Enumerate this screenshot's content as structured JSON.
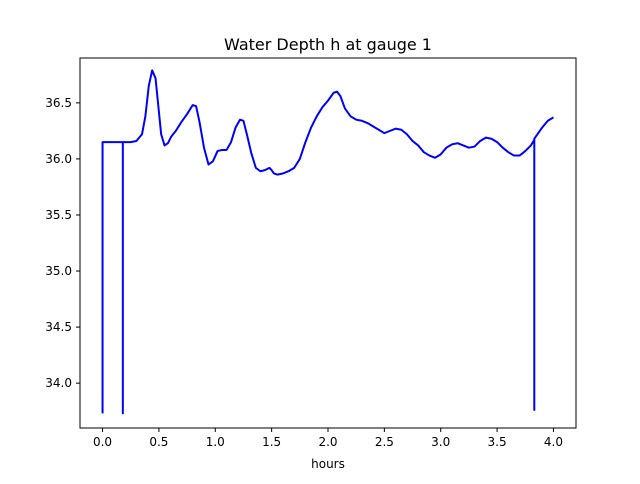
{
  "chart_data": {
    "type": "line",
    "title": "Water Depth h at gauge 1",
    "xlabel": "hours",
    "ylabel": "",
    "xlim": [
      -0.2,
      4.2
    ],
    "ylim": [
      33.6,
      36.9
    ],
    "xticks": [
      0.0,
      0.5,
      1.0,
      1.5,
      2.0,
      2.5,
      3.0,
      3.5,
      4.0
    ],
    "xtick_labels": [
      "0.0",
      "0.5",
      "1.0",
      "1.5",
      "2.0",
      "2.5",
      "3.0",
      "3.5",
      "4.0"
    ],
    "yticks": [
      34.0,
      34.5,
      35.0,
      35.5,
      36.0,
      36.5
    ],
    "ytick_labels": [
      "34.0",
      "34.5",
      "35.0",
      "35.5",
      "36.0",
      "36.5"
    ],
    "grid": false,
    "line_color": "#0000ff",
    "series": [
      {
        "x": [
          0.0,
          0.0,
          0.05,
          0.1,
          0.15,
          0.18,
          0.18,
          0.18,
          0.25,
          0.3,
          0.35,
          0.38,
          0.41,
          0.44,
          0.47,
          0.5,
          0.52,
          0.55,
          0.58,
          0.61,
          0.65,
          0.7,
          0.75,
          0.8,
          0.83,
          0.86,
          0.9,
          0.94,
          0.98,
          1.02,
          1.06,
          1.1,
          1.14,
          1.18,
          1.22,
          1.25,
          1.28,
          1.32,
          1.36,
          1.4,
          1.44,
          1.48,
          1.5,
          1.52,
          1.55,
          1.6,
          1.65,
          1.7,
          1.75,
          1.8,
          1.85,
          1.9,
          1.95,
          2.0,
          2.05,
          2.08,
          2.11,
          2.15,
          2.2,
          2.25,
          2.3,
          2.35,
          2.4,
          2.45,
          2.5,
          2.55,
          2.6,
          2.65,
          2.7,
          2.75,
          2.8,
          2.85,
          2.9,
          2.95,
          3.0,
          3.05,
          3.1,
          3.15,
          3.2,
          3.25,
          3.3,
          3.35,
          3.4,
          3.45,
          3.5,
          3.55,
          3.6,
          3.65,
          3.7,
          3.75,
          3.8,
          3.83,
          3.83,
          3.83,
          3.9,
          3.95,
          4.0
        ],
        "y": [
          33.73,
          36.15,
          36.15,
          36.15,
          36.15,
          36.15,
          33.73,
          36.15,
          36.15,
          36.16,
          36.22,
          36.38,
          36.65,
          36.79,
          36.72,
          36.42,
          36.22,
          36.12,
          36.14,
          36.2,
          36.25,
          36.33,
          36.4,
          36.48,
          36.47,
          36.33,
          36.1,
          35.95,
          35.98,
          36.07,
          36.08,
          36.08,
          36.15,
          36.28,
          36.35,
          36.34,
          36.22,
          36.05,
          35.92,
          35.89,
          35.9,
          35.92,
          35.9,
          35.87,
          35.86,
          35.87,
          35.89,
          35.92,
          36.0,
          36.15,
          36.28,
          36.38,
          36.46,
          36.52,
          36.59,
          36.6,
          36.56,
          36.45,
          36.38,
          36.35,
          36.34,
          36.32,
          36.29,
          36.26,
          36.23,
          36.25,
          36.27,
          36.26,
          36.22,
          36.16,
          36.12,
          36.06,
          36.03,
          36.01,
          36.04,
          36.1,
          36.13,
          36.14,
          36.12,
          36.1,
          36.11,
          36.16,
          36.19,
          36.18,
          36.15,
          36.1,
          36.06,
          36.03,
          36.03,
          36.07,
          36.12,
          36.17,
          33.76,
          36.18,
          36.28,
          36.34,
          36.37
        ]
      }
    ]
  }
}
